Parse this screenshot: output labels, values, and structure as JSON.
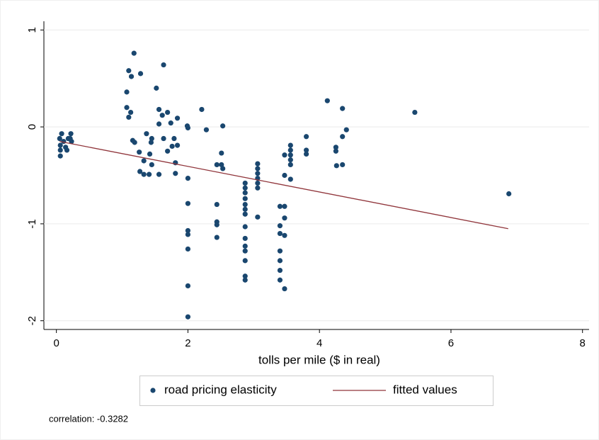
{
  "chart_data": {
    "type": "scatter",
    "x_label": "tolls per mile ($ in real)",
    "note": "correlation: -0.3282",
    "xlim": [
      -0.19,
      8.1
    ],
    "ylim": [
      -2.09,
      1.09
    ],
    "xticks": [
      0,
      2,
      4,
      6,
      8
    ],
    "yticks": [
      -2,
      -1,
      0,
      1
    ],
    "grid": true,
    "legend": "bottom",
    "series": [
      {
        "name": "road pricing elasticity",
        "type": "scatter",
        "color": "#1a476f",
        "x": [
          0.05,
          0.08,
          0.06,
          0.06,
          0.06,
          0.11,
          0.14,
          0.16,
          0.18,
          0.22,
          0.23,
          0.21,
          1.18,
          1.1,
          1.14,
          1.28,
          1.63,
          1.07,
          1.52,
          1.07,
          1.13,
          1.1,
          1.56,
          1.61,
          1.69,
          1.84,
          1.56,
          1.74,
          1.16,
          1.19,
          1.37,
          1.45,
          1.44,
          1.63,
          1.79,
          1.26,
          1.42,
          1.69,
          1.76,
          1.84,
          1.33,
          1.45,
          1.27,
          1.33,
          1.41,
          1.56,
          1.81,
          1.81,
          1.99,
          2.0,
          2.0,
          2.0,
          2.0,
          2.0,
          2.0,
          2.0,
          2.0,
          2.21,
          2.28,
          2.53,
          2.51,
          2.44,
          2.51,
          2.53,
          2.44,
          2.44,
          2.44,
          2.44,
          2.87,
          2.87,
          2.87,
          2.87,
          2.87,
          2.87,
          2.87,
          2.87,
          2.87,
          2.87,
          2.87,
          2.87,
          2.87,
          2.87,
          3.06,
          3.06,
          3.06,
          3.06,
          3.06,
          3.06,
          3.06,
          3.4,
          3.4,
          3.4,
          3.4,
          3.4,
          3.4,
          3.4,
          3.47,
          3.47,
          3.47,
          3.47,
          3.47,
          3.47,
          3.56,
          3.56,
          3.56,
          3.56,
          3.56,
          3.56,
          3.8,
          3.8,
          3.8,
          4.12,
          4.25,
          4.25,
          4.26,
          4.35,
          4.35,
          4.35,
          4.41,
          5.45,
          6.88
        ],
        "y": [
          -0.12,
          -0.07,
          -0.19,
          -0.24,
          -0.3,
          -0.15,
          -0.21,
          -0.24,
          -0.12,
          -0.07,
          -0.15,
          -0.12,
          0.76,
          0.58,
          0.52,
          0.55,
          0.64,
          0.36,
          0.4,
          0.2,
          0.15,
          0.1,
          0.18,
          0.12,
          0.15,
          0.09,
          0.03,
          0.04,
          -0.14,
          -0.16,
          -0.07,
          -0.12,
          -0.16,
          -0.12,
          -0.12,
          -0.26,
          -0.28,
          -0.25,
          -0.2,
          -0.19,
          -0.35,
          -0.39,
          -0.46,
          -0.49,
          -0.49,
          -0.49,
          -0.37,
          -0.48,
          0.01,
          -0.01,
          -0.53,
          -0.79,
          -1.07,
          -1.11,
          -1.26,
          -1.64,
          -1.96,
          0.18,
          -0.03,
          0.01,
          -0.27,
          -0.39,
          -0.39,
          -0.43,
          -0.8,
          -0.98,
          -1.01,
          -1.14,
          -0.58,
          -0.63,
          -0.68,
          -0.74,
          -0.8,
          -0.85,
          -0.9,
          -1.03,
          -1.15,
          -1.23,
          -1.28,
          -1.38,
          -1.54,
          -1.58,
          -0.38,
          -0.43,
          -0.48,
          -0.53,
          -0.58,
          -0.63,
          -0.93,
          -0.82,
          -1.02,
          -1.1,
          -1.28,
          -1.38,
          -1.48,
          -1.58,
          -0.29,
          -0.5,
          -0.82,
          -0.94,
          -1.12,
          -1.67,
          -0.19,
          -0.24,
          -0.29,
          -0.34,
          -0.39,
          -0.54,
          -0.1,
          -0.24,
          -0.28,
          0.27,
          -0.21,
          -0.25,
          -0.4,
          0.19,
          -0.1,
          -0.39,
          -0.03,
          0.15,
          -0.69
        ]
      },
      {
        "name": "fitted values",
        "type": "line",
        "color": "#90353b",
        "x": [
          0.05,
          6.87
        ],
        "y": [
          -0.15,
          -1.05
        ]
      }
    ]
  }
}
